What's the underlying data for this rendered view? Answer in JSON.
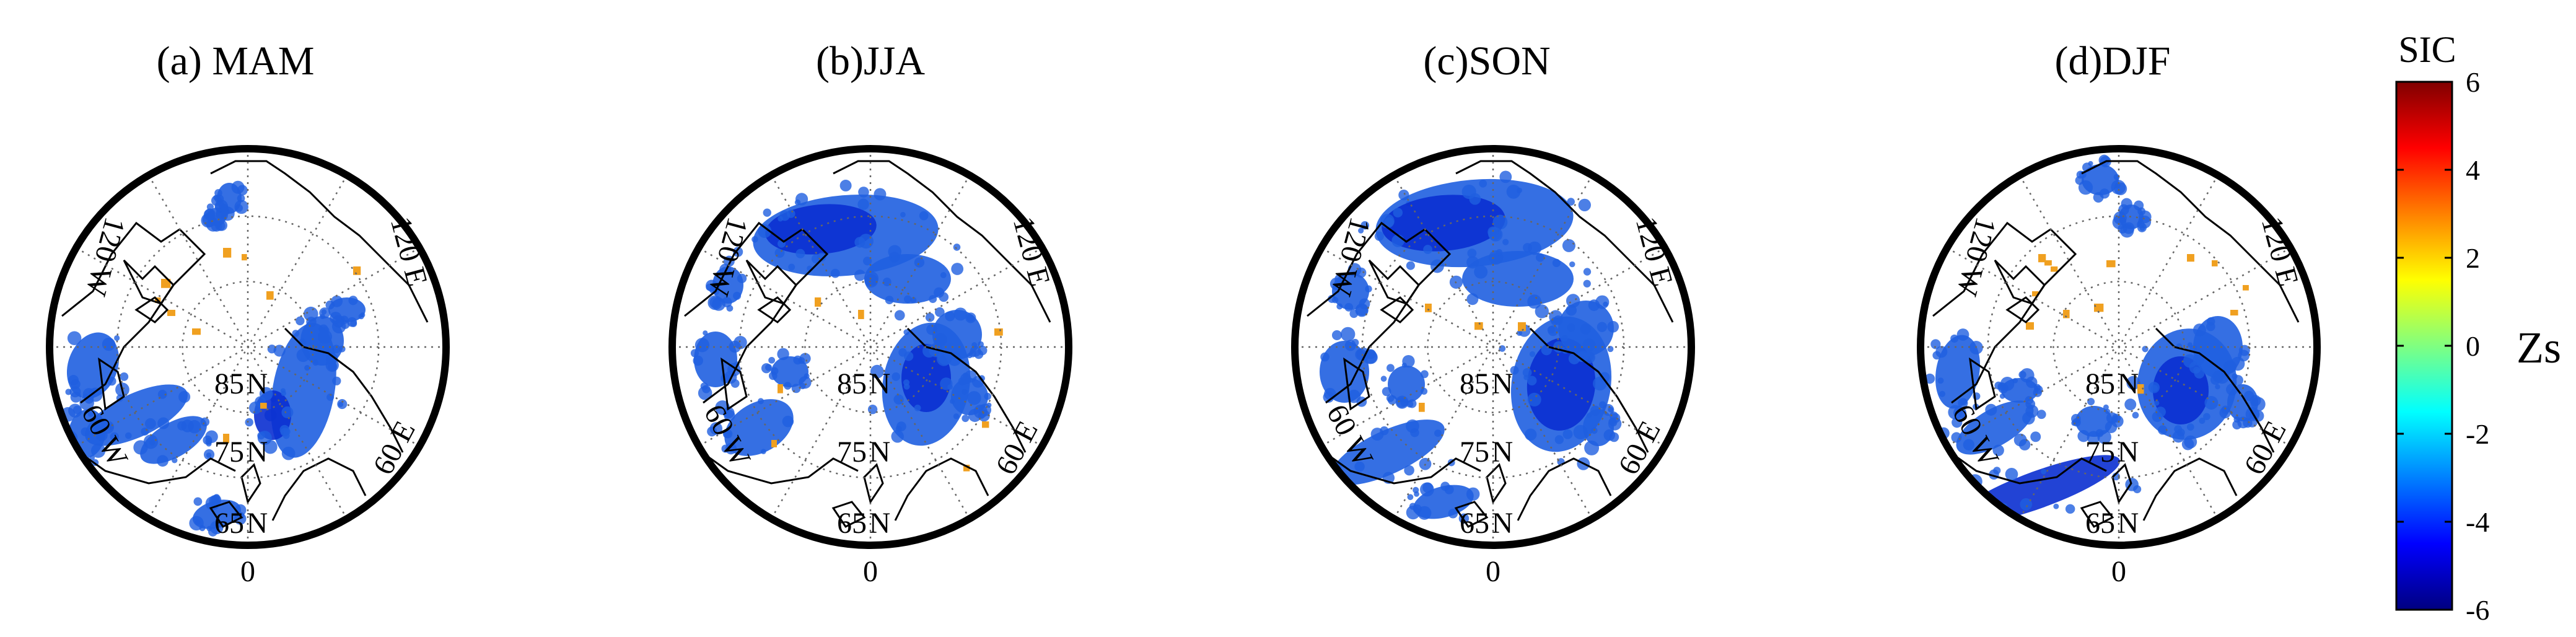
{
  "panels": [
    {
      "title": "(a) MAM",
      "lon_labels": {
        "w120": "120 W",
        "e120": "120 E",
        "w60": "60 W",
        "e60": "60 E",
        "zero": "0"
      },
      "lat_labels": {
        "l85": "85",
        "l75": "75",
        "l65": "65",
        "n": "N"
      },
      "pattern": "mam"
    },
    {
      "title": "(b)JJA",
      "lon_labels": {
        "w120": "120 W",
        "e120": "120 E",
        "w60": "60 W",
        "e60": "60 E",
        "zero": "0"
      },
      "lat_labels": {
        "l85": "85",
        "l75": "75",
        "l65": "65",
        "n": "N"
      },
      "pattern": "jja"
    },
    {
      "title": "(c)SON",
      "lon_labels": {
        "w120": "120 W",
        "e120": "120 E",
        "w60": "60 W",
        "e60": "60 E",
        "zero": "0"
      },
      "lat_labels": {
        "l85": "85",
        "l75": "75",
        "l65": "65",
        "n": "N"
      },
      "pattern": "son"
    },
    {
      "title": "(d)DJF",
      "lon_labels": {
        "w120": "120 W",
        "e120": "120 E",
        "w60": "60 W",
        "e60": "60 E",
        "zero": "0"
      },
      "lat_labels": {
        "l85": "85",
        "l75": "75",
        "l65": "65",
        "n": "N"
      },
      "pattern": "djf"
    }
  ],
  "colorbar": {
    "title": "SIC",
    "unit_label": "Zs",
    "min": -6,
    "max": 6,
    "ticks": [
      "6",
      "4",
      "2",
      "0",
      "-2",
      "-4",
      "-6"
    ],
    "colors": [
      "#000080",
      "#0000ff",
      "#0080ff",
      "#00ffff",
      "#80ff80",
      "#ffff00",
      "#ff8000",
      "#ff0000",
      "#800000"
    ]
  },
  "colors": {
    "negative_anomaly": "#1f5fe0",
    "strong_negative": "#0a2fd0",
    "positive_anomaly": "#f0a020",
    "coastline": "#000000",
    "grid": "#666666"
  }
}
